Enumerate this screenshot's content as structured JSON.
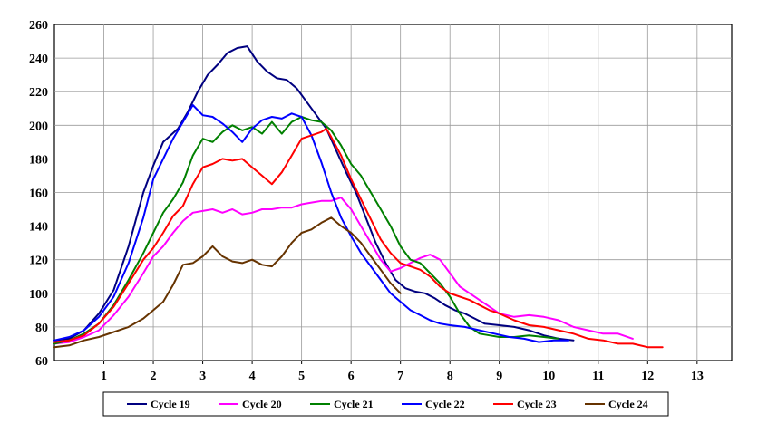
{
  "chart_data": {
    "type": "line",
    "title": "",
    "xlabel": "",
    "ylabel": "",
    "xlim": [
      0,
      13.7
    ],
    "ylim": [
      60,
      260
    ],
    "xticks": [
      1,
      2,
      3,
      4,
      5,
      6,
      7,
      8,
      9,
      10,
      11,
      12,
      13
    ],
    "yticks": [
      60,
      80,
      100,
      120,
      140,
      160,
      180,
      200,
      220,
      240,
      260
    ],
    "grid": true,
    "legend_position": "bottom",
    "series": [
      {
        "name": "Cycle 19",
        "color": "#000080",
        "points": [
          [
            0,
            72
          ],
          [
            0.3,
            73
          ],
          [
            0.6,
            78
          ],
          [
            0.9,
            88
          ],
          [
            1.2,
            102
          ],
          [
            1.5,
            128
          ],
          [
            1.8,
            160
          ],
          [
            2.0,
            176
          ],
          [
            2.2,
            190
          ],
          [
            2.5,
            198
          ],
          [
            2.7,
            208
          ],
          [
            2.9,
            220
          ],
          [
            3.1,
            230
          ],
          [
            3.3,
            236
          ],
          [
            3.5,
            243
          ],
          [
            3.7,
            246
          ],
          [
            3.9,
            247
          ],
          [
            4.1,
            238
          ],
          [
            4.3,
            232
          ],
          [
            4.5,
            228
          ],
          [
            4.7,
            227
          ],
          [
            4.9,
            222
          ],
          [
            5.1,
            214
          ],
          [
            5.3,
            206
          ],
          [
            5.5,
            198
          ],
          [
            5.7,
            185
          ],
          [
            5.9,
            172
          ],
          [
            6.1,
            160
          ],
          [
            6.3,
            145
          ],
          [
            6.5,
            130
          ],
          [
            6.7,
            118
          ],
          [
            6.9,
            108
          ],
          [
            7.1,
            103
          ],
          [
            7.3,
            101
          ],
          [
            7.5,
            100
          ],
          [
            7.7,
            97
          ],
          [
            7.9,
            93
          ],
          [
            8.1,
            90
          ],
          [
            8.3,
            88
          ],
          [
            8.5,
            85
          ],
          [
            8.7,
            82
          ],
          [
            9.0,
            81
          ],
          [
            9.3,
            80
          ],
          [
            9.6,
            78
          ],
          [
            9.9,
            75
          ],
          [
            10.2,
            73
          ],
          [
            10.5,
            72
          ]
        ]
      },
      {
        "name": "Cycle 20",
        "color": "#ff00ff",
        "points": [
          [
            0,
            70
          ],
          [
            0.3,
            71
          ],
          [
            0.6,
            74
          ],
          [
            0.9,
            78
          ],
          [
            1.2,
            87
          ],
          [
            1.5,
            98
          ],
          [
            1.8,
            112
          ],
          [
            2.0,
            122
          ],
          [
            2.2,
            128
          ],
          [
            2.4,
            136
          ],
          [
            2.6,
            143
          ],
          [
            2.8,
            148
          ],
          [
            3.0,
            149
          ],
          [
            3.2,
            150
          ],
          [
            3.4,
            148
          ],
          [
            3.6,
            150
          ],
          [
            3.8,
            147
          ],
          [
            4.0,
            148
          ],
          [
            4.2,
            150
          ],
          [
            4.4,
            150
          ],
          [
            4.6,
            151
          ],
          [
            4.8,
            151
          ],
          [
            5.0,
            153
          ],
          [
            5.2,
            154
          ],
          [
            5.4,
            155
          ],
          [
            5.6,
            155
          ],
          [
            5.8,
            157
          ],
          [
            6.0,
            150
          ],
          [
            6.2,
            140
          ],
          [
            6.4,
            130
          ],
          [
            6.6,
            120
          ],
          [
            6.8,
            113
          ],
          [
            7.0,
            115
          ],
          [
            7.2,
            118
          ],
          [
            7.4,
            121
          ],
          [
            7.6,
            123
          ],
          [
            7.8,
            120
          ],
          [
            8.0,
            112
          ],
          [
            8.2,
            104
          ],
          [
            8.4,
            100
          ],
          [
            8.6,
            96
          ],
          [
            8.8,
            92
          ],
          [
            9.0,
            88
          ],
          [
            9.3,
            86
          ],
          [
            9.6,
            87
          ],
          [
            9.9,
            86
          ],
          [
            10.2,
            84
          ],
          [
            10.5,
            80
          ],
          [
            10.8,
            78
          ],
          [
            11.1,
            76
          ],
          [
            11.4,
            76
          ],
          [
            11.7,
            73
          ]
        ]
      },
      {
        "name": "Cycle 21",
        "color": "#008000",
        "points": [
          [
            0,
            70
          ],
          [
            0.3,
            72
          ],
          [
            0.6,
            76
          ],
          [
            0.9,
            82
          ],
          [
            1.2,
            93
          ],
          [
            1.5,
            108
          ],
          [
            1.8,
            124
          ],
          [
            2.0,
            136
          ],
          [
            2.2,
            148
          ],
          [
            2.4,
            156
          ],
          [
            2.6,
            166
          ],
          [
            2.8,
            182
          ],
          [
            3.0,
            192
          ],
          [
            3.2,
            190
          ],
          [
            3.4,
            196
          ],
          [
            3.6,
            200
          ],
          [
            3.8,
            197
          ],
          [
            4.0,
            199
          ],
          [
            4.2,
            195
          ],
          [
            4.4,
            202
          ],
          [
            4.6,
            195
          ],
          [
            4.8,
            202
          ],
          [
            5.0,
            205
          ],
          [
            5.2,
            203
          ],
          [
            5.4,
            202
          ],
          [
            5.6,
            197
          ],
          [
            5.8,
            188
          ],
          [
            6.0,
            177
          ],
          [
            6.2,
            170
          ],
          [
            6.4,
            160
          ],
          [
            6.6,
            150
          ],
          [
            6.8,
            140
          ],
          [
            7.0,
            128
          ],
          [
            7.2,
            120
          ],
          [
            7.4,
            118
          ],
          [
            7.6,
            112
          ],
          [
            7.8,
            106
          ],
          [
            8.0,
            98
          ],
          [
            8.2,
            88
          ],
          [
            8.4,
            80
          ],
          [
            8.6,
            76
          ],
          [
            8.8,
            75
          ],
          [
            9.0,
            74
          ],
          [
            9.3,
            74
          ],
          [
            9.6,
            75
          ],
          [
            9.9,
            74
          ],
          [
            10.2,
            73
          ]
        ]
      },
      {
        "name": "Cycle 22",
        "color": "#0000ff",
        "points": [
          [
            0,
            72
          ],
          [
            0.3,
            74
          ],
          [
            0.6,
            78
          ],
          [
            0.9,
            86
          ],
          [
            1.2,
            98
          ],
          [
            1.5,
            118
          ],
          [
            1.8,
            145
          ],
          [
            2.0,
            168
          ],
          [
            2.2,
            180
          ],
          [
            2.4,
            192
          ],
          [
            2.6,
            202
          ],
          [
            2.8,
            212
          ],
          [
            3.0,
            206
          ],
          [
            3.2,
            205
          ],
          [
            3.4,
            201
          ],
          [
            3.6,
            196
          ],
          [
            3.8,
            190
          ],
          [
            4.0,
            198
          ],
          [
            4.2,
            203
          ],
          [
            4.4,
            205
          ],
          [
            4.6,
            204
          ],
          [
            4.8,
            207
          ],
          [
            5.0,
            205
          ],
          [
            5.2,
            194
          ],
          [
            5.4,
            178
          ],
          [
            5.6,
            160
          ],
          [
            5.8,
            145
          ],
          [
            6.0,
            134
          ],
          [
            6.2,
            124
          ],
          [
            6.4,
            116
          ],
          [
            6.6,
            108
          ],
          [
            6.8,
            100
          ],
          [
            7.0,
            95
          ],
          [
            7.2,
            90
          ],
          [
            7.4,
            87
          ],
          [
            7.6,
            84
          ],
          [
            7.8,
            82
          ],
          [
            8.0,
            81
          ],
          [
            8.3,
            80
          ],
          [
            8.6,
            78
          ],
          [
            8.9,
            76
          ],
          [
            9.2,
            74
          ],
          [
            9.5,
            73
          ],
          [
            9.8,
            71
          ],
          [
            10.1,
            72
          ],
          [
            10.4,
            72
          ]
        ]
      },
      {
        "name": "Cycle 23",
        "color": "#ff0000",
        "points": [
          [
            0,
            71
          ],
          [
            0.3,
            72
          ],
          [
            0.6,
            75
          ],
          [
            0.9,
            82
          ],
          [
            1.2,
            92
          ],
          [
            1.5,
            106
          ],
          [
            1.8,
            120
          ],
          [
            2.0,
            127
          ],
          [
            2.2,
            136
          ],
          [
            2.4,
            146
          ],
          [
            2.6,
            152
          ],
          [
            2.8,
            165
          ],
          [
            3.0,
            175
          ],
          [
            3.2,
            177
          ],
          [
            3.4,
            180
          ],
          [
            3.6,
            179
          ],
          [
            3.8,
            180
          ],
          [
            4.0,
            175
          ],
          [
            4.2,
            170
          ],
          [
            4.4,
            165
          ],
          [
            4.6,
            172
          ],
          [
            4.8,
            182
          ],
          [
            5.0,
            192
          ],
          [
            5.2,
            194
          ],
          [
            5.4,
            196
          ],
          [
            5.5,
            198
          ],
          [
            5.6,
            193
          ],
          [
            5.8,
            182
          ],
          [
            6.0,
            168
          ],
          [
            6.2,
            156
          ],
          [
            6.4,
            144
          ],
          [
            6.6,
            132
          ],
          [
            6.8,
            124
          ],
          [
            7.0,
            118
          ],
          [
            7.2,
            116
          ],
          [
            7.4,
            114
          ],
          [
            7.6,
            110
          ],
          [
            7.8,
            104
          ],
          [
            8.0,
            100
          ],
          [
            8.2,
            98
          ],
          [
            8.4,
            96
          ],
          [
            8.6,
            93
          ],
          [
            8.8,
            90
          ],
          [
            9.0,
            88
          ],
          [
            9.3,
            84
          ],
          [
            9.6,
            81
          ],
          [
            9.9,
            80
          ],
          [
            10.2,
            78
          ],
          [
            10.5,
            76
          ],
          [
            10.8,
            73
          ],
          [
            11.1,
            72
          ],
          [
            11.4,
            70
          ],
          [
            11.7,
            70
          ],
          [
            12.0,
            68
          ],
          [
            12.3,
            68
          ]
        ]
      },
      {
        "name": "Cycle 24",
        "color": "#663300",
        "points": [
          [
            0,
            68
          ],
          [
            0.3,
            69
          ],
          [
            0.6,
            72
          ],
          [
            0.9,
            74
          ],
          [
            1.2,
            77
          ],
          [
            1.5,
            80
          ],
          [
            1.8,
            85
          ],
          [
            2.0,
            90
          ],
          [
            2.2,
            95
          ],
          [
            2.4,
            105
          ],
          [
            2.6,
            117
          ],
          [
            2.8,
            118
          ],
          [
            3.0,
            122
          ],
          [
            3.2,
            128
          ],
          [
            3.4,
            122
          ],
          [
            3.6,
            119
          ],
          [
            3.8,
            118
          ],
          [
            4.0,
            120
          ],
          [
            4.2,
            117
          ],
          [
            4.4,
            116
          ],
          [
            4.6,
            122
          ],
          [
            4.8,
            130
          ],
          [
            5.0,
            136
          ],
          [
            5.2,
            138
          ],
          [
            5.4,
            142
          ],
          [
            5.6,
            145
          ],
          [
            5.8,
            140
          ],
          [
            6.0,
            136
          ],
          [
            6.2,
            130
          ],
          [
            6.4,
            122
          ],
          [
            6.6,
            114
          ],
          [
            6.8,
            106
          ],
          [
            7.0,
            100
          ]
        ]
      }
    ]
  },
  "legend": [
    {
      "label": "Cycle 19",
      "color": "#000080"
    },
    {
      "label": "Cycle 20",
      "color": "#ff00ff"
    },
    {
      "label": "Cycle 21",
      "color": "#008000"
    },
    {
      "label": "Cycle 22",
      "color": "#0000ff"
    },
    {
      "label": "Cycle 23",
      "color": "#ff0000"
    },
    {
      "label": "Cycle 24",
      "color": "#663300"
    }
  ]
}
